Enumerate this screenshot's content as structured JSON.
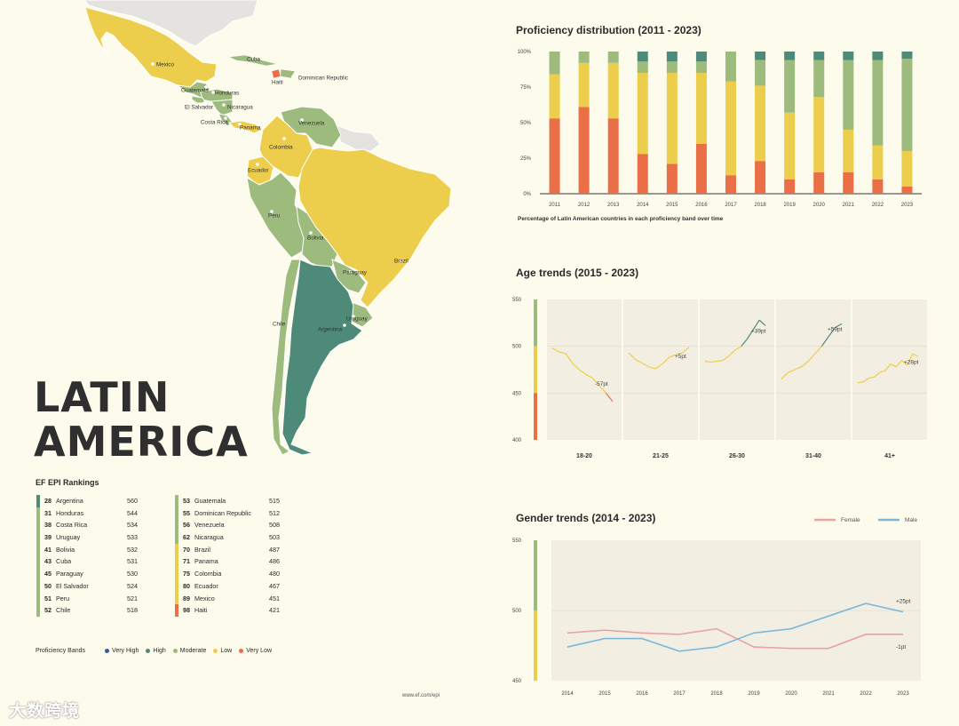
{
  "region_title": [
    "LATIN",
    "AMERICA"
  ],
  "colors": {
    "very_high": "#2f5f9e",
    "high": "#4e8a78",
    "moderate": "#9dbb7d",
    "low": "#eccd4c",
    "very_low": "#ea6f47",
    "background": "#fdfbec",
    "female": "#e8a2a2",
    "male": "#7ab9dc"
  },
  "map": {
    "country_labels": [
      "Mexico",
      "Cuba",
      "Dominican Republic",
      "Haiti",
      "Guatemala",
      "Honduras",
      "El Salvador",
      "Nicaragua",
      "Costa Rica",
      "Panama",
      "Venezuela",
      "Colombia",
      "Ecuador",
      "Peru",
      "Brazil",
      "Bolivia",
      "Paraguay",
      "Chile",
      "Uruguay",
      "Argentina"
    ]
  },
  "rankings": {
    "title": "EF EPI Rankings",
    "left": [
      {
        "rank": "28",
        "country": "Argentina",
        "score": "560",
        "band": "high"
      },
      {
        "rank": "31",
        "country": "Honduras",
        "score": "544",
        "band": "moderate"
      },
      {
        "rank": "38",
        "country": "Costa Rica",
        "score": "534",
        "band": "moderate"
      },
      {
        "rank": "39",
        "country": "Uruguay",
        "score": "533",
        "band": "moderate"
      },
      {
        "rank": "41",
        "country": "Bolivia",
        "score": "532",
        "band": "moderate"
      },
      {
        "rank": "43",
        "country": "Cuba",
        "score": "531",
        "band": "moderate"
      },
      {
        "rank": "45",
        "country": "Paraguay",
        "score": "530",
        "band": "moderate"
      },
      {
        "rank": "50",
        "country": "El Salvador",
        "score": "524",
        "band": "moderate"
      },
      {
        "rank": "51",
        "country": "Peru",
        "score": "521",
        "band": "moderate"
      },
      {
        "rank": "52",
        "country": "Chile",
        "score": "518",
        "band": "moderate"
      }
    ],
    "right": [
      {
        "rank": "53",
        "country": "Guatemala",
        "score": "515",
        "band": "moderate"
      },
      {
        "rank": "55",
        "country": "Dominican Republic",
        "score": "512",
        "band": "moderate"
      },
      {
        "rank": "56",
        "country": "Venezuela",
        "score": "508",
        "band": "moderate"
      },
      {
        "rank": "62",
        "country": "Nicaragua",
        "score": "503",
        "band": "moderate"
      },
      {
        "rank": "70",
        "country": "Brazil",
        "score": "487",
        "band": "low"
      },
      {
        "rank": "71",
        "country": "Panama",
        "score": "486",
        "band": "low"
      },
      {
        "rank": "75",
        "country": "Colombia",
        "score": "480",
        "band": "low"
      },
      {
        "rank": "80",
        "country": "Ecuador",
        "score": "467",
        "band": "low"
      },
      {
        "rank": "89",
        "country": "Mexico",
        "score": "451",
        "band": "low"
      },
      {
        "rank": "98",
        "country": "Haiti",
        "score": "421",
        "band": "very_low"
      }
    ]
  },
  "bands_legend": {
    "label": "Proficiency Bands",
    "items": [
      {
        "name": "Very High",
        "key": "very_high"
      },
      {
        "name": "High",
        "key": "high"
      },
      {
        "name": "Moderate",
        "key": "moderate"
      },
      {
        "name": "Low",
        "key": "low"
      },
      {
        "name": "Very Low",
        "key": "very_low"
      }
    ]
  },
  "footer_url": "www.ef.com/epi",
  "watermark": "大数跨境",
  "chart_data": [
    {
      "type": "bar",
      "stacked": true,
      "title": "Proficiency distribution (2011 - 2023)",
      "subtitle": "Percentage of Latin American countries in each proficiency band over time",
      "categories": [
        "2011",
        "2012",
        "2013",
        "2014",
        "2015",
        "2016",
        "2017",
        "2018",
        "2019",
        "2020",
        "2021",
        "2022",
        "2023"
      ],
      "yticks": [
        "0%",
        "25%",
        "50%",
        "75%",
        "100%"
      ],
      "ylim": [
        0,
        100
      ],
      "series": [
        {
          "key": "very_low",
          "values": [
            53,
            61,
            53,
            28,
            21,
            35,
            13,
            23,
            10,
            15,
            15,
            10,
            5
          ]
        },
        {
          "key": "low",
          "values": [
            31,
            31,
            39,
            57,
            64,
            50,
            66,
            53,
            47,
            53,
            30,
            24,
            25
          ]
        },
        {
          "key": "moderate",
          "values": [
            16,
            8,
            8,
            8,
            8,
            8,
            21,
            18,
            37,
            26,
            49,
            60,
            65
          ]
        },
        {
          "key": "high",
          "values": [
            0,
            0,
            0,
            7,
            7,
            7,
            0,
            6,
            6,
            6,
            6,
            6,
            5
          ]
        }
      ]
    },
    {
      "type": "line",
      "title": "Age trends (2015 - 2023)",
      "ylim": [
        400,
        550
      ],
      "yticks": [
        "400",
        "450",
        "500",
        "550"
      ],
      "panels": [
        {
          "label": "18-20",
          "delta": "-57pt",
          "values": [
            498,
            494,
            492,
            482,
            475,
            470,
            466,
            458,
            450,
            441
          ]
        },
        {
          "label": "21-25",
          "delta": "+5pt",
          "values": [
            493,
            486,
            482,
            478,
            476,
            481,
            488,
            491,
            493,
            499
          ]
        },
        {
          "label": "26-30",
          "delta": "+39pt",
          "values": [
            484,
            483,
            484,
            485,
            490,
            496,
            500,
            508,
            518,
            528,
            522
          ]
        },
        {
          "label": "31-40",
          "delta": "+59pt",
          "values": [
            465,
            472,
            475,
            478,
            484,
            492,
            500,
            510,
            520,
            524
          ]
        },
        {
          "label": "41+",
          "delta": "+28pt",
          "values": [
            461,
            462,
            466,
            467,
            472,
            474,
            481,
            478,
            485,
            480,
            492,
            489
          ]
        }
      ]
    },
    {
      "type": "line",
      "title": "Gender trends (2014 - 2023)",
      "x": [
        "2014",
        "2015",
        "2016",
        "2017",
        "2018",
        "2019",
        "2020",
        "2021",
        "2022",
        "2023"
      ],
      "ylim": [
        450,
        550
      ],
      "yticks": [
        "450",
        "500",
        "550"
      ],
      "legend": "top-right",
      "series": [
        {
          "name": "Female",
          "key": "female",
          "delta": "-1pt",
          "values": [
            484,
            486,
            484,
            483,
            487,
            474,
            473,
            473,
            483,
            483
          ]
        },
        {
          "name": "Male",
          "key": "male",
          "delta": "+25pt",
          "values": [
            474,
            480,
            480,
            471,
            474,
            484,
            487,
            496,
            505,
            499
          ]
        }
      ]
    }
  ]
}
